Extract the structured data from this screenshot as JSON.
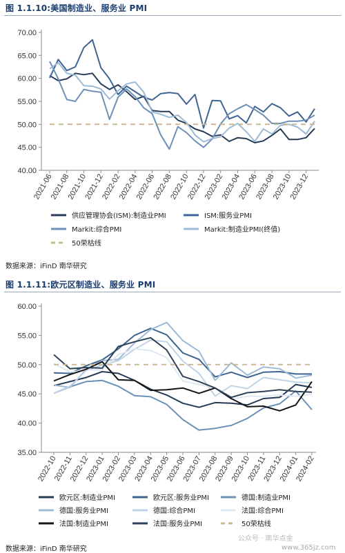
{
  "figure1": {
    "title": "图 1.1.10:美国制造业、服务业 PMI",
    "source": "数据来源：iFinD 南华研究"
  },
  "figure2": {
    "title": "图 1.1.11:欧元区制造业、服务业 PMI",
    "source": "数据来源：iFinD 南华研究"
  },
  "watermark": "公众号 · 南华点金",
  "watermark_site": "www.365jz.com",
  "chart_data": [
    {
      "type": "line",
      "ylim": [
        40,
        70
      ],
      "yticks": [
        "40.00",
        "45.00",
        "50.00",
        "55.00",
        "60.00",
        "65.00",
        "70.00"
      ],
      "xticks": [
        "2021-06",
        "2021-08",
        "2021-10",
        "2021-12",
        "2022-02",
        "2022-04",
        "2022-06",
        "2022-08",
        "2022-10",
        "2022-12",
        "2023-02",
        "2023-04",
        "2023-06",
        "2023-08",
        "2023-10",
        "2023-12"
      ],
      "x": [
        "2021-06",
        "2021-07",
        "2021-08",
        "2021-09",
        "2021-10",
        "2021-11",
        "2021-12",
        "2022-01",
        "2022-02",
        "2022-03",
        "2022-04",
        "2022-05",
        "2022-06",
        "2022-07",
        "2022-08",
        "2022-09",
        "2022-10",
        "2022-11",
        "2022-12",
        "2023-01",
        "2023-02",
        "2023-03",
        "2023-04",
        "2023-05",
        "2023-06",
        "2023-07",
        "2023-08",
        "2023-09",
        "2023-10",
        "2023-11",
        "2023-12",
        "2024-01"
      ],
      "series": [
        {
          "name": "供应管理协会(ISM):制造业PMI",
          "color": "#243a56",
          "dash": false,
          "values": [
            60.6,
            59.5,
            59.9,
            61.1,
            60.8,
            61.1,
            58.8,
            57.6,
            58.6,
            57.1,
            55.4,
            56.1,
            53.0,
            52.8,
            52.8,
            50.9,
            50.2,
            49.0,
            48.4,
            47.4,
            47.7,
            46.3,
            47.1,
            46.9,
            46.0,
            46.4,
            47.6,
            49.0,
            46.7,
            46.7,
            47.1,
            49.1
          ]
        },
        {
          "name": "ISM:服务业PMI",
          "color": "#3e6490",
          "dash": false,
          "values": [
            60.1,
            64.1,
            61.7,
            62.5,
            66.7,
            68.4,
            62.3,
            59.9,
            56.5,
            58.3,
            57.1,
            55.9,
            55.3,
            56.7,
            56.9,
            56.7,
            54.4,
            56.5,
            49.2,
            55.2,
            55.1,
            51.2,
            51.9,
            50.3,
            53.9,
            52.7,
            54.5,
            53.6,
            51.8,
            52.7,
            50.5,
            53.4
          ]
        },
        {
          "name": "Markit:综合PMI",
          "color": "#6b90b8",
          "dash": false,
          "values": [
            63.7,
            59.9,
            55.4,
            55.0,
            57.6,
            57.2,
            57.0,
            51.1,
            55.9,
            57.7,
            56.0,
            53.6,
            52.3,
            47.7,
            44.6,
            49.5,
            48.2,
            46.4,
            45.0,
            46.8,
            50.1,
            52.3,
            53.4,
            54.3,
            53.2,
            52.0,
            50.2,
            50.2,
            50.7,
            50.7,
            50.9,
            52.0
          ]
        },
        {
          "name": "Markit:制造业PMI(终值)",
          "color": "#9cbad6",
          "dash": false,
          "values": [
            62.1,
            63.4,
            61.1,
            60.7,
            58.4,
            58.3,
            57.7,
            55.5,
            57.3,
            58.8,
            59.2,
            57.0,
            52.7,
            52.2,
            51.5,
            52.0,
            50.4,
            47.7,
            46.2,
            46.9,
            47.3,
            49.2,
            50.2,
            48.4,
            46.3,
            49.0,
            47.9,
            49.8,
            50.0,
            49.4,
            47.9,
            50.7
          ]
        },
        {
          "name": "50荣枯线",
          "color": "#c8b792",
          "dash": true,
          "values": [
            50,
            50,
            50,
            50,
            50,
            50,
            50,
            50,
            50,
            50,
            50,
            50,
            50,
            50,
            50,
            50,
            50,
            50,
            50,
            50,
            50,
            50,
            50,
            50,
            50,
            50,
            50,
            50,
            50,
            50,
            50,
            50
          ]
        }
      ]
    },
    {
      "type": "line",
      "ylim": [
        35,
        60
      ],
      "yticks": [
        "35.00",
        "40.00",
        "45.00",
        "50.00",
        "55.00",
        "60.00"
      ],
      "xticks": [
        "2022-10",
        "2022-11",
        "2022-12",
        "2023-01",
        "2023-02",
        "2023-03",
        "2023-04",
        "2023-05",
        "2023-06",
        "2023-07",
        "2023-08",
        "2023-09",
        "2023-10",
        "2023-11",
        "2023-12",
        "2024-01",
        "2024-02"
      ],
      "x": [
        "2022-10",
        "2022-11",
        "2022-12",
        "2023-01",
        "2023-02",
        "2023-03",
        "2023-04",
        "2023-05",
        "2023-06",
        "2023-07",
        "2023-08",
        "2023-09",
        "2023-10",
        "2023-11",
        "2023-12",
        "2024-01",
        "2024-02"
      ],
      "series": [
        {
          "name": "欧元区:制造业PMI",
          "color": "#243a56",
          "dash": false,
          "values": [
            46.4,
            47.1,
            47.8,
            48.8,
            48.5,
            47.3,
            45.8,
            44.8,
            43.4,
            42.7,
            43.5,
            43.4,
            43.1,
            44.2,
            44.4,
            46.6,
            46.1
          ]
        },
        {
          "name": "欧元区:服务业PMI",
          "color": "#3e6490",
          "dash": false,
          "values": [
            48.6,
            48.5,
            49.8,
            50.8,
            52.7,
            55.0,
            56.2,
            55.1,
            52.0,
            50.9,
            47.9,
            48.7,
            47.8,
            48.7,
            48.8,
            48.4,
            48.4
          ]
        },
        {
          "name": "德国:制造业PMI",
          "color": "#6b90b8",
          "dash": false,
          "values": [
            45.1,
            46.2,
            47.1,
            47.3,
            46.3,
            44.7,
            44.5,
            43.2,
            40.6,
            38.8,
            39.1,
            39.6,
            40.8,
            42.6,
            43.3,
            45.5,
            42.3
          ]
        },
        {
          "name": "德国:服务业PMI",
          "color": "#9cbad6",
          "dash": false,
          "values": [
            46.5,
            46.1,
            49.2,
            50.7,
            50.9,
            53.7,
            56.0,
            57.2,
            54.1,
            52.3,
            47.3,
            50.3,
            48.2,
            49.6,
            49.3,
            47.7,
            48.2
          ]
        },
        {
          "name": "德国:综合PMI",
          "color": "#c0d3e6",
          "dash": false,
          "values": [
            45.1,
            46.3,
            49.0,
            49.9,
            50.7,
            52.6,
            54.2,
            53.9,
            50.6,
            48.5,
            44.6,
            46.4,
            45.9,
            47.8,
            47.4,
            47.0,
            46.9
          ]
        },
        {
          "name": "法国:综合PMI",
          "color": "#dfe8f1",
          "dash": false,
          "values": [
            50.2,
            48.7,
            49.1,
            49.1,
            51.7,
            52.7,
            52.4,
            51.2,
            47.2,
            46.6,
            46.0,
            44.1,
            44.6,
            44.6,
            44.8,
            44.6,
            44.9
          ]
        },
        {
          "name": "法国:制造业PMI",
          "color": "#141414",
          "dash": false,
          "values": [
            47.2,
            48.3,
            49.2,
            50.5,
            47.4,
            47.3,
            45.6,
            45.7,
            46.0,
            45.1,
            46.0,
            44.2,
            42.8,
            42.9,
            42.1,
            43.1,
            47.1
          ]
        },
        {
          "name": "法国:服务业PMI",
          "color": "#2e4158",
          "dash": false,
          "values": [
            51.7,
            49.3,
            49.5,
            49.4,
            53.1,
            53.9,
            54.6,
            52.5,
            48.0,
            47.1,
            46.0,
            44.4,
            45.2,
            45.4,
            45.7,
            45.4,
            45.3
          ]
        },
        {
          "name": "50荣枯线",
          "color": "#c8b792",
          "dash": true,
          "values": [
            50,
            50,
            50,
            50,
            50,
            50,
            50,
            50,
            50,
            50,
            50,
            50,
            50,
            50,
            50,
            50,
            50
          ]
        }
      ]
    }
  ]
}
